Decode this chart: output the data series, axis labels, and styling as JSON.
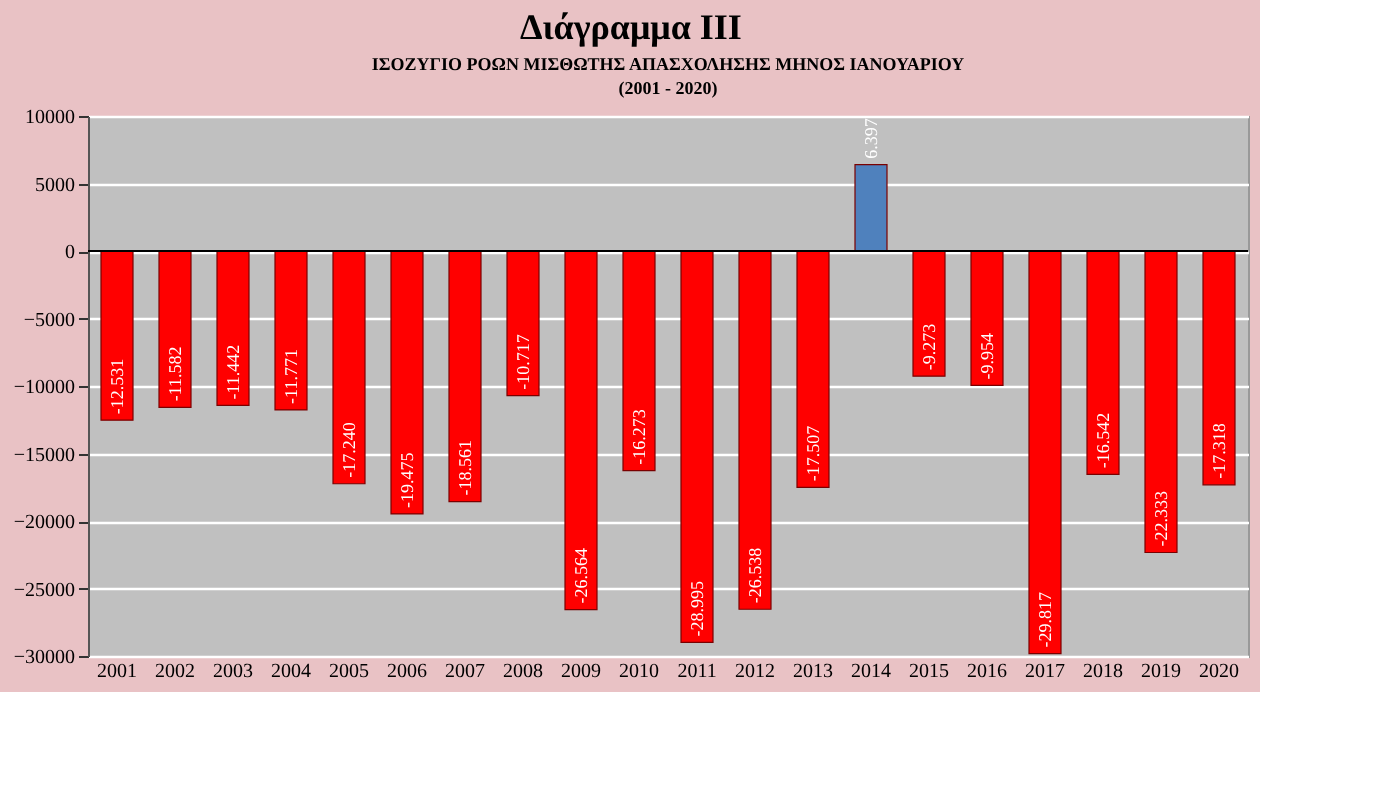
{
  "chart_data": {
    "type": "bar",
    "title": "ΙΣΟΖΥΓΙΟ ΡΟΩΝ ΜΙΣΘΩΤΗΣ ΑΠΑΣΧΟΛΗΣΗΣ ΜΗΝΟΣ  ΙΑΝΟΥΑΡΙΟΥ",
    "subtitle": "(2001 - 2020)",
    "annotations": [
      "Διάγραμμα ΙΙΙ"
    ],
    "categories": [
      "2001",
      "2002",
      "2003",
      "2004",
      "2005",
      "2006",
      "2007",
      "2008",
      "2009",
      "2010",
      "2011",
      "2012",
      "2013",
      "2014",
      "2015",
      "2016",
      "2017",
      "2018",
      "2019",
      "2020"
    ],
    "values": [
      -12531,
      -11582,
      -11442,
      -11771,
      -17240,
      -19475,
      -18561,
      -10717,
      -26564,
      -16273,
      -28995,
      -26538,
      -17507,
      6397,
      -9273,
      -9954,
      -29817,
      -16542,
      -22333,
      -17318
    ],
    "value_labels": [
      "-12.531",
      "-11.582",
      "-11.442",
      "-11.771",
      "-17.240",
      "-19.475",
      "-18.561",
      "-10.717",
      "-26.564",
      "-16.273",
      "-28.995",
      "-26.538",
      "-17.507",
      "6.397",
      "-9.273",
      "-9.954",
      "-29.817",
      "-16.542",
      "-22.333",
      "-17.318"
    ],
    "colors": [
      "#ff0000",
      "#ff0000",
      "#ff0000",
      "#ff0000",
      "#ff0000",
      "#ff0000",
      "#ff0000",
      "#ff0000",
      "#ff0000",
      "#ff0000",
      "#ff0000",
      "#ff0000",
      "#ff0000",
      "#4f81bd",
      "#ff0000",
      "#ff0000",
      "#ff0000",
      "#ff0000",
      "#ff0000",
      "#ff0000"
    ],
    "ylim": [
      -30000,
      10000
    ],
    "yticks": [
      -30000,
      -25000,
      -20000,
      -15000,
      -10000,
      -5000,
      0,
      5000,
      10000
    ],
    "grid": "y"
  }
}
